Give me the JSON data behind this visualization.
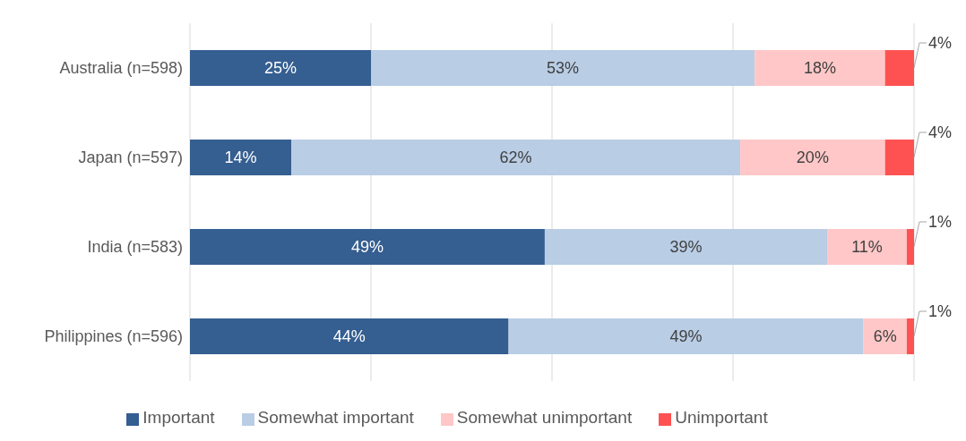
{
  "chart_data": {
    "type": "bar",
    "orientation": "horizontal",
    "stacked": true,
    "categories": [
      "Australia (n=598)",
      "Japan (n=597)",
      "India (n=583)",
      "Philippines (n=596)"
    ],
    "series": [
      {
        "name": "Important",
        "color": "#355e91",
        "values": [
          25,
          14,
          49,
          44
        ],
        "value_labels": [
          "25%",
          "14%",
          "49%",
          "44%"
        ]
      },
      {
        "name": "Somewhat important",
        "color": "#b9cde5",
        "values": [
          53,
          62,
          39,
          49
        ],
        "value_labels": [
          "53%",
          "62%",
          "39%",
          "49%"
        ]
      },
      {
        "name": "Somewhat unimportant",
        "color": "#ffc7c7",
        "values": [
          18,
          20,
          11,
          6
        ],
        "value_labels": [
          "18%",
          "20%",
          "11%",
          "6%"
        ]
      },
      {
        "name": "Unimportant",
        "color": "#fe5252",
        "values": [
          4,
          4,
          1,
          1
        ],
        "value_labels": [
          "4%",
          "4%",
          "1%",
          "1%"
        ]
      }
    ],
    "xlim": [
      0,
      100
    ],
    "grid": "x",
    "tick_labels": "y",
    "legend": "bottom"
  }
}
